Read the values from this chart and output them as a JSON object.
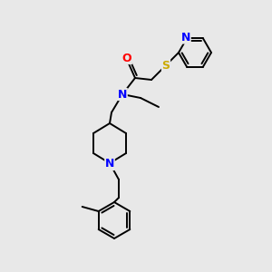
{
  "background_color": "#e8e8e8",
  "atom_colors": {
    "N": "#0000ff",
    "O": "#ff0000",
    "S": "#ccaa00",
    "C": "#000000"
  },
  "font_size_atoms": 8.5,
  "line_width": 1.4
}
